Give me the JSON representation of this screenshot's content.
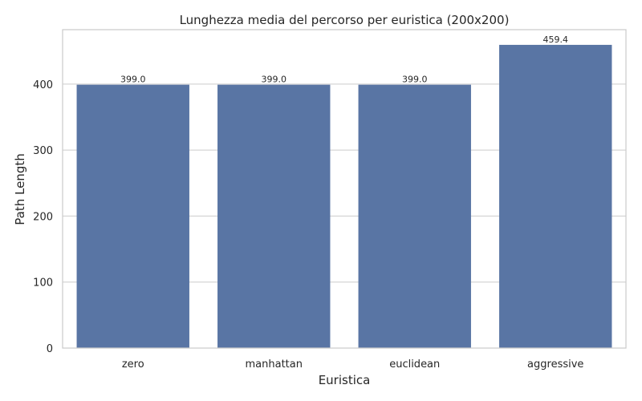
{
  "chart_data": {
    "type": "bar",
    "title": "Lunghezza media del percorso per euristica (200x200)",
    "xlabel": "Euristica",
    "ylabel": "Path Length",
    "categories": [
      "zero",
      "manhattan",
      "euclidean",
      "aggressive"
    ],
    "values": [
      399.0,
      399.0,
      399.0,
      459.4
    ],
    "data_labels": [
      "399.0",
      "399.0",
      "399.0",
      "459.4"
    ],
    "yticks": [
      0,
      100,
      200,
      300,
      400
    ],
    "ylim": [
      0,
      482.4
    ],
    "grid": true,
    "legend": "none",
    "colors": {
      "bar": "#5975a4",
      "grid": "#cccccc",
      "frame": "#cccccc",
      "text": "#262626",
      "background": "#ffffff"
    }
  }
}
